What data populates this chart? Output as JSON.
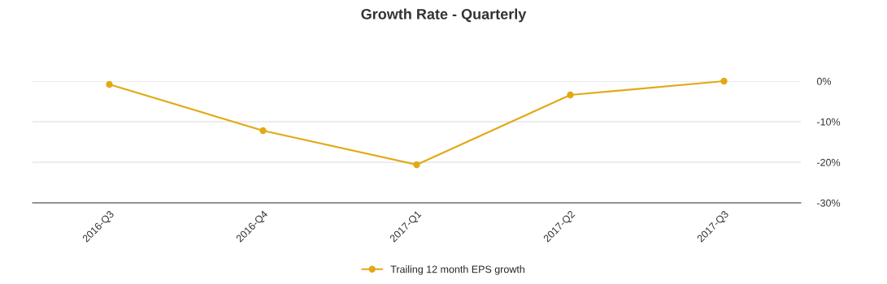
{
  "chart_data": {
    "type": "line",
    "title": "Growth Rate - Quarterly",
    "categories": [
      "2016-Q3",
      "2016-Q4",
      "2017-Q1",
      "2017-Q2",
      "2017-Q3"
    ],
    "series": [
      {
        "name": "Trailing 12 month EPS growth",
        "color": "#e2a913",
        "values": [
          -0.8,
          -12.2,
          -20.6,
          -3.4,
          0
        ]
      }
    ],
    "ylim": [
      -30,
      0
    ],
    "yticks": [
      {
        "value": 0,
        "label": "0%"
      },
      {
        "value": -10,
        "label": "-10%"
      },
      {
        "value": -20,
        "label": "-20%"
      },
      {
        "value": -30,
        "label": "-30%"
      }
    ],
    "grid": "y",
    "legend": "bottom",
    "marker": "circle",
    "line_style": "solid"
  }
}
